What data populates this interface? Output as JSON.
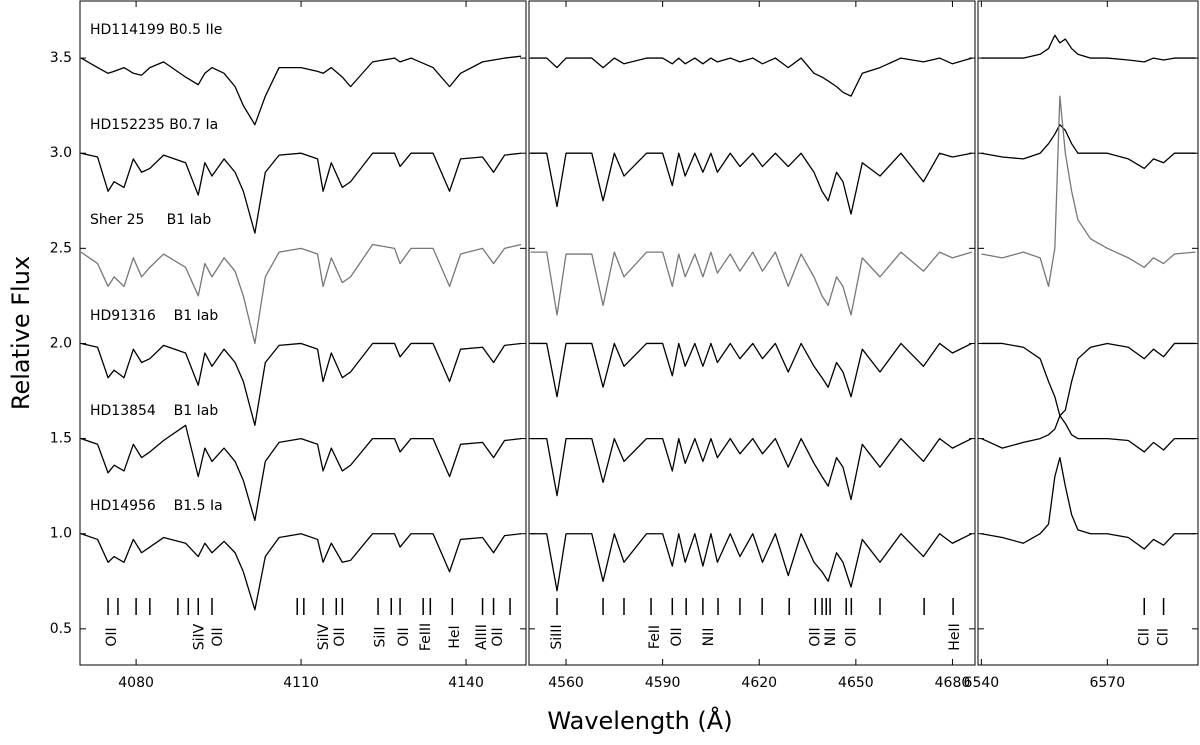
{
  "chart_data": [
    {
      "type": "line",
      "ylabel": "Relative Flux",
      "xlim": [
        4069.8,
        4150.9
      ],
      "ylim": [
        0.31,
        3.8
      ],
      "xticks": [
        4080,
        4110,
        4140
      ],
      "yticks": [
        0.5,
        {
          "value": 1,
          "label": "1.0"
        },
        1.5,
        {
          "value": 2,
          "label": "2.0"
        },
        2.5,
        {
          "value": 3,
          "label": "3.0"
        },
        3.5
      ],
      "x": [
        4070,
        4073,
        4074.9,
        4076,
        4077.8,
        4079.5,
        4081,
        4082.5,
        4085,
        4089,
        4091.3,
        4092.5,
        4093.8,
        4096,
        4098,
        4099.5,
        4101.6,
        4103.5,
        4106,
        4110,
        4113,
        4114,
        4115.5,
        4117.5,
        4119,
        4123,
        4127,
        4128,
        4130,
        4134,
        4137,
        4139,
        4143,
        4145,
        4147,
        4150
      ],
      "series": [
        {
          "name": "HD114199 B0.5 IIe",
          "color": "#000000",
          "values": [
            3.5,
            3.45,
            3.42,
            3.43,
            3.45,
            3.42,
            3.41,
            3.45,
            3.48,
            3.4,
            3.36,
            3.42,
            3.45,
            3.42,
            3.35,
            3.25,
            3.15,
            3.3,
            3.45,
            3.45,
            3.43,
            3.42,
            3.45,
            3.4,
            3.35,
            3.48,
            3.5,
            3.48,
            3.5,
            3.45,
            3.35,
            3.42,
            3.48,
            3.49,
            3.5,
            3.51
          ]
        },
        {
          "name": "HD152235 B0.7 Ia",
          "color": "#000000",
          "values": [
            3.0,
            2.98,
            2.8,
            2.85,
            2.82,
            2.97,
            2.9,
            2.92,
            2.99,
            2.95,
            2.78,
            2.95,
            2.88,
            2.97,
            2.9,
            2.8,
            2.58,
            2.9,
            2.99,
            3.0,
            2.97,
            2.8,
            2.95,
            2.82,
            2.85,
            3.0,
            3.0,
            2.93,
            3.0,
            3.0,
            2.8,
            2.97,
            2.98,
            2.9,
            2.99,
            3.0
          ]
        },
        {
          "name": "Sher 25     B1 Iab",
          "color": "#777777",
          "values": [
            2.48,
            2.42,
            2.3,
            2.35,
            2.3,
            2.45,
            2.35,
            2.4,
            2.47,
            2.4,
            2.25,
            2.42,
            2.35,
            2.45,
            2.38,
            2.25,
            2.0,
            2.35,
            2.48,
            2.5,
            2.47,
            2.3,
            2.45,
            2.32,
            2.35,
            2.52,
            2.5,
            2.42,
            2.5,
            2.5,
            2.3,
            2.47,
            2.5,
            2.42,
            2.5,
            2.52
          ]
        },
        {
          "name": "HD91316    B1 Iab",
          "color": "#000000",
          "values": [
            2.0,
            1.98,
            1.82,
            1.86,
            1.82,
            1.97,
            1.9,
            1.92,
            1.99,
            1.95,
            1.78,
            1.95,
            1.88,
            1.97,
            1.9,
            1.8,
            1.57,
            1.9,
            1.99,
            2.0,
            1.97,
            1.8,
            1.95,
            1.82,
            1.85,
            2.0,
            2.0,
            1.93,
            2.0,
            2.0,
            1.8,
            1.97,
            1.98,
            1.9,
            1.99,
            2.0
          ]
        },
        {
          "name": "HD13854    B1 Iab",
          "color": "#000000",
          "values": [
            1.5,
            1.47,
            1.32,
            1.36,
            1.33,
            1.47,
            1.4,
            1.43,
            1.49,
            1.57,
            1.3,
            1.45,
            1.38,
            1.45,
            1.38,
            1.28,
            1.07,
            1.38,
            1.48,
            1.5,
            1.47,
            1.33,
            1.45,
            1.33,
            1.36,
            1.5,
            1.5,
            1.43,
            1.5,
            1.5,
            1.3,
            1.47,
            1.48,
            1.4,
            1.49,
            1.5
          ]
        },
        {
          "name": "HD14956    B1.5 Ia",
          "color": "#000000",
          "values": [
            1.0,
            0.97,
            0.85,
            0.88,
            0.85,
            0.97,
            0.9,
            0.93,
            0.98,
            0.95,
            0.88,
            0.95,
            0.9,
            0.96,
            0.9,
            0.8,
            0.6,
            0.88,
            0.98,
            1.0,
            0.97,
            0.85,
            0.95,
            0.85,
            0.86,
            1.0,
            1.0,
            0.93,
            1.0,
            1.0,
            0.8,
            0.97,
            0.98,
            0.9,
            0.99,
            1.0
          ]
        }
      ],
      "line_marks": [
        4074.9,
        4076.7,
        4080,
        4082.5,
        4087.6,
        4089.5,
        4091.3,
        4093.8,
        4109.3,
        4110.5,
        4114,
        4116.4,
        4117.5,
        4124,
        4126.4,
        4128,
        4132.2,
        4133.5,
        4137.5,
        4143,
        4145,
        4148
      ],
      "line_labels": [
        {
          "value": 4075.6,
          "label": "OII"
        },
        {
          "value": 4091.5,
          "label": "SiIV"
        },
        {
          "value": 4094.9,
          "label": "OII"
        },
        {
          "value": 4114.2,
          "label": "SiIV"
        },
        {
          "value": 4117.1,
          "label": "OII"
        },
        {
          "value": 4124.4,
          "label": "SiII"
        },
        {
          "value": 4128.7,
          "label": "OII"
        },
        {
          "value": 4132.7,
          "label": "FeIII"
        },
        {
          "value": 4138,
          "label": "HeI"
        },
        {
          "value": 4142.9,
          "label": "AlIII"
        },
        {
          "value": 4145.8,
          "label": "OII"
        }
      ]
    },
    {
      "type": "line",
      "xlabel": "Wavelength (Å)",
      "xlim": [
        4548.5,
        4687
      ],
      "ylim": [
        0.31,
        3.8
      ],
      "xticks": [
        4560,
        4590,
        4620,
        4650,
        4680
      ],
      "yticks": [
        0.5,
        1,
        1.5,
        2,
        2.5,
        3,
        3.5
      ],
      "x": [
        4549,
        4554,
        4557.2,
        4560,
        4568,
        4571.5,
        4575,
        4578,
        4585,
        4590,
        4593,
        4595,
        4597,
        4600,
        4602.5,
        4605,
        4607,
        4611,
        4614,
        4618,
        4621,
        4625,
        4629,
        4633,
        4637,
        4639.5,
        4641.4,
        4644,
        4646,
        4648.5,
        4652,
        4657.5,
        4664,
        4671,
        4676,
        4680,
        4686
      ],
      "series": [
        {
          "color": "#000000",
          "values": [
            3.5,
            3.5,
            3.45,
            3.5,
            3.5,
            3.45,
            3.5,
            3.47,
            3.5,
            3.5,
            3.47,
            3.5,
            3.47,
            3.5,
            3.47,
            3.5,
            3.48,
            3.5,
            3.48,
            3.5,
            3.47,
            3.5,
            3.45,
            3.5,
            3.42,
            3.4,
            3.38,
            3.35,
            3.32,
            3.3,
            3.42,
            3.45,
            3.5,
            3.48,
            3.5,
            3.47,
            3.5
          ]
        },
        {
          "color": "#000000",
          "values": [
            3.0,
            3.0,
            2.72,
            3.0,
            3.0,
            2.75,
            3.0,
            2.88,
            3.0,
            3.0,
            2.83,
            3.0,
            2.88,
            3.0,
            2.9,
            3.0,
            2.9,
            3.0,
            2.93,
            3.0,
            2.93,
            3.0,
            2.93,
            3.0,
            2.9,
            2.8,
            2.75,
            2.9,
            2.85,
            2.68,
            2.95,
            2.88,
            3.0,
            2.85,
            3.0,
            2.98,
            3.0
          ]
        },
        {
          "color": "#777777",
          "values": [
            2.48,
            2.48,
            2.15,
            2.47,
            2.47,
            2.2,
            2.48,
            2.35,
            2.48,
            2.48,
            2.3,
            2.47,
            2.35,
            2.47,
            2.35,
            2.48,
            2.37,
            2.47,
            2.38,
            2.48,
            2.38,
            2.48,
            2.3,
            2.47,
            2.35,
            2.25,
            2.2,
            2.35,
            2.3,
            2.15,
            2.45,
            2.35,
            2.48,
            2.38,
            2.48,
            2.45,
            2.48
          ]
        },
        {
          "color": "#000000",
          "values": [
            2.0,
            2.0,
            1.72,
            2.0,
            2.0,
            1.77,
            2.0,
            1.88,
            2.0,
            2.0,
            1.83,
            2.0,
            1.88,
            2.0,
            1.88,
            2.0,
            1.9,
            2.0,
            1.92,
            2.0,
            1.92,
            2.0,
            1.85,
            2.0,
            1.88,
            1.82,
            1.77,
            1.9,
            1.85,
            1.72,
            1.97,
            1.85,
            2.0,
            1.88,
            2.0,
            1.95,
            2.0
          ]
        },
        {
          "color": "#000000",
          "values": [
            1.5,
            1.5,
            1.2,
            1.5,
            1.5,
            1.27,
            1.5,
            1.38,
            1.5,
            1.5,
            1.33,
            1.5,
            1.37,
            1.5,
            1.38,
            1.5,
            1.4,
            1.5,
            1.42,
            1.5,
            1.42,
            1.5,
            1.35,
            1.5,
            1.37,
            1.3,
            1.25,
            1.4,
            1.35,
            1.18,
            1.47,
            1.35,
            1.5,
            1.38,
            1.5,
            1.45,
            1.5
          ]
        },
        {
          "color": "#000000",
          "values": [
            1.0,
            1.0,
            0.7,
            1.0,
            1.0,
            0.75,
            1.0,
            0.85,
            1.0,
            1.0,
            0.83,
            1.0,
            0.85,
            1.0,
            0.83,
            1.0,
            0.85,
            1.0,
            0.88,
            1.0,
            0.85,
            1.0,
            0.78,
            1.0,
            0.85,
            0.8,
            0.75,
            0.9,
            0.85,
            0.72,
            0.97,
            0.85,
            1.0,
            0.88,
            1.0,
            0.95,
            1.0
          ]
        }
      ],
      "line_marks": [
        4557.2,
        4571.5,
        4578,
        4586.4,
        4593,
        4597.3,
        4602.5,
        4607.2,
        4614,
        4620.9,
        4629.3,
        4637.4,
        4639.5,
        4640.8,
        4642,
        4647,
        4648.6,
        4657.5,
        4671.2,
        4680.2
      ],
      "line_labels": [
        {
          "value": 4557.2,
          "label": "SiIII"
        },
        {
          "value": 4587.6,
          "label": "FeII"
        },
        {
          "value": 4594.5,
          "label": "OII"
        },
        {
          "value": 4604.4,
          "label": "NII"
        },
        {
          "value": 4637.4,
          "label": "OII"
        },
        {
          "value": 4642.3,
          "label": "NII"
        },
        {
          "value": 4648.6,
          "label": "OII"
        },
        {
          "value": 4680.8,
          "label": "HeII"
        }
      ]
    },
    {
      "type": "line",
      "xlim": [
        6539.2,
        6591.6
      ],
      "ylim": [
        0.31,
        3.8
      ],
      "xticks": [
        6540,
        6570
      ],
      "yticks": [
        0.5,
        1,
        1.5,
        2,
        2.5,
        3,
        3.5
      ],
      "x": [
        6540,
        6545,
        6550,
        6554,
        6556,
        6557.5,
        6558.7,
        6560,
        6561.5,
        6563,
        6566,
        6570,
        6575,
        6578.8,
        6581,
        6583.4,
        6586,
        6591
      ],
      "series": [
        {
          "color": "#000000",
          "values": [
            3.5,
            3.5,
            3.5,
            3.52,
            3.55,
            3.62,
            3.58,
            3.6,
            3.55,
            3.52,
            3.5,
            3.5,
            3.49,
            3.48,
            3.5,
            3.49,
            3.5,
            3.5
          ]
        },
        {
          "color": "#000000",
          "values": [
            3.0,
            2.98,
            2.97,
            3.0,
            3.05,
            3.1,
            3.15,
            3.12,
            3.05,
            3.0,
            3.0,
            3.0,
            2.97,
            2.92,
            2.97,
            2.95,
            3.0,
            3.0
          ]
        },
        {
          "color": "#777777",
          "values": [
            2.47,
            2.45,
            2.48,
            2.45,
            2.3,
            2.5,
            3.3,
            3.0,
            2.8,
            2.65,
            2.55,
            2.5,
            2.45,
            2.4,
            2.45,
            2.42,
            2.47,
            2.48
          ]
        },
        {
          "color": "#000000",
          "values": [
            2.0,
            2.0,
            1.98,
            1.92,
            1.8,
            1.72,
            1.62,
            1.65,
            1.8,
            1.92,
            1.98,
            2.0,
            1.98,
            1.92,
            1.97,
            1.93,
            2.0,
            2.0
          ]
        },
        {
          "color": "#000000",
          "values": [
            1.5,
            1.45,
            1.48,
            1.5,
            1.52,
            1.55,
            1.62,
            1.58,
            1.52,
            1.5,
            1.5,
            1.5,
            1.49,
            1.43,
            1.48,
            1.44,
            1.5,
            1.5
          ]
        },
        {
          "color": "#000000",
          "values": [
            1.0,
            0.98,
            0.95,
            1.0,
            1.05,
            1.3,
            1.4,
            1.25,
            1.1,
            1.02,
            1.0,
            1.0,
            0.98,
            0.92,
            0.97,
            0.94,
            1.0,
            1.0
          ]
        }
      ],
      "line_marks": [
        6578.8,
        6583.4
      ],
      "line_labels": [
        {
          "value": 6578.8,
          "label": "CII"
        },
        {
          "value": 6583.4,
          "label": "CII"
        }
      ]
    }
  ]
}
